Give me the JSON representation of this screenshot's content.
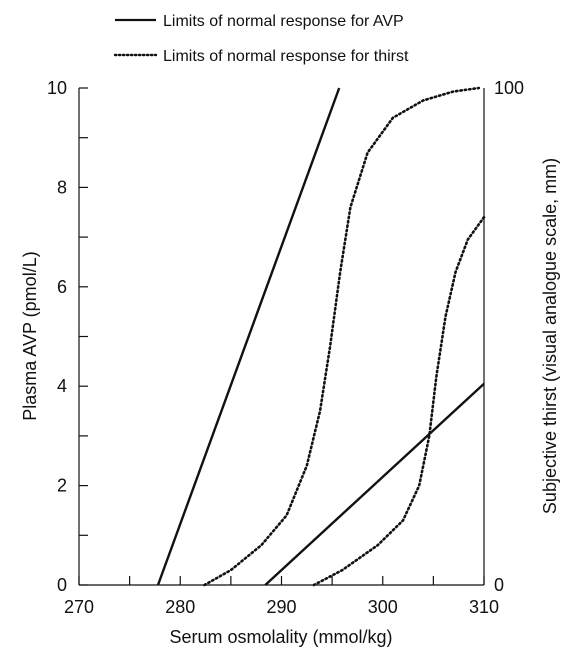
{
  "chart_data": {
    "type": "line",
    "title": "",
    "xlabel": "Serum osmolality (mmol/kg)",
    "ylabel": "Plasma AVP (pmol/L)",
    "y2label": "Subjective thirst (visual analogue scale, mm)",
    "xlim": [
      270,
      310
    ],
    "ylim": [
      0,
      10
    ],
    "y2lim": [
      0,
      100
    ],
    "x_ticks": [
      270,
      280,
      290,
      300,
      310
    ],
    "x_tick_labels": [
      "270",
      "280",
      "290",
      "300",
      "310"
    ],
    "y_ticks": [
      0,
      2,
      4,
      6,
      8,
      10
    ],
    "y_tick_labels": [
      "0",
      "2",
      "4",
      "6",
      "8",
      "10"
    ],
    "y2_ticks": [
      0,
      100
    ],
    "y2_tick_labels": [
      "0",
      "100"
    ],
    "grid": false,
    "legend_position": "top",
    "legend": [
      {
        "label": "Limits of normal response for AVP",
        "style": "solid"
      },
      {
        "label": "Limits of normal response for thirst",
        "style": "dotted"
      }
    ],
    "series": [
      {
        "group": "AVP",
        "style": "solid",
        "axis": "left",
        "points": [
          [
            277.8,
            0
          ],
          [
            295.7,
            10
          ]
        ]
      },
      {
        "group": "AVP",
        "style": "solid",
        "axis": "left",
        "points": [
          [
            288.4,
            0
          ],
          [
            310,
            4.05
          ]
        ]
      },
      {
        "group": "thirst",
        "style": "dotted",
        "axis": "right",
        "points": [
          [
            282.4,
            0
          ],
          [
            285,
            3
          ],
          [
            288,
            8
          ],
          [
            290.5,
            14
          ],
          [
            292.5,
            24
          ],
          [
            293.8,
            35
          ],
          [
            294.8,
            48
          ],
          [
            295.8,
            63
          ],
          [
            296.8,
            76
          ],
          [
            298.5,
            87
          ],
          [
            301,
            94
          ],
          [
            304,
            97.5
          ],
          [
            307,
            99.3
          ],
          [
            309.5,
            100
          ]
        ]
      },
      {
        "group": "thirst",
        "style": "dotted",
        "axis": "right",
        "points": [
          [
            293.2,
            0
          ],
          [
            296,
            3
          ],
          [
            299.5,
            8
          ],
          [
            302,
            13
          ],
          [
            303.6,
            20
          ],
          [
            304.6,
            30
          ],
          [
            305.3,
            42
          ],
          [
            306.2,
            54
          ],
          [
            307.2,
            63
          ],
          [
            308.4,
            69.5
          ],
          [
            310,
            74
          ]
        ]
      }
    ]
  }
}
